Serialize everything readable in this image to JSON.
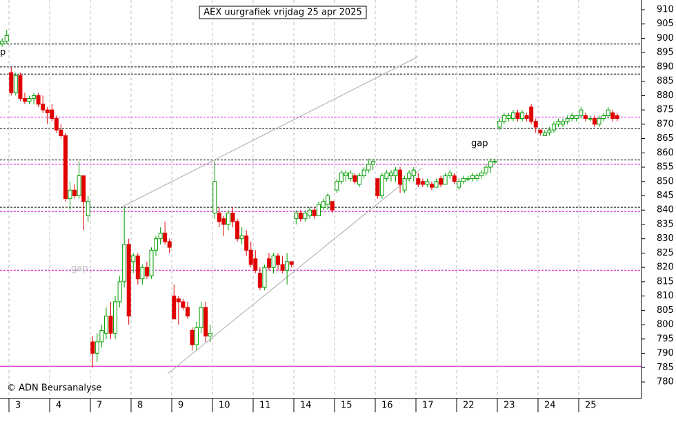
{
  "chart_data": {
    "type": "candlestick",
    "title": "AEX uurgrafiek vrijdag 25 apr 2025",
    "copyright": "© ADN Beursanalyse",
    "annotations": [
      "gap",
      "gap",
      "p"
    ],
    "up_color": "#00a000",
    "down_color": "#e00000",
    "ylim": [
      776,
      912
    ],
    "yticks": [
      780,
      785,
      790,
      795,
      800,
      805,
      810,
      815,
      820,
      825,
      830,
      835,
      840,
      845,
      850,
      855,
      860,
      865,
      870,
      875,
      880,
      885,
      890,
      895,
      900,
      905,
      910
    ],
    "levels": [
      {
        "value": 898,
        "color": "#000000",
        "style": "dotted"
      },
      {
        "value": 890,
        "color": "#000000",
        "style": "dotted"
      },
      {
        "value": 887.5,
        "color": "#000000",
        "style": "dotted"
      },
      {
        "value": 872.5,
        "color": "#cc00cc",
        "style": "dotted"
      },
      {
        "value": 868.5,
        "color": "#000000",
        "style": "dotted"
      },
      {
        "value": 857.5,
        "color": "#000000",
        "style": "dotted"
      },
      {
        "value": 856,
        "color": "#cc00cc",
        "style": "dotted"
      },
      {
        "value": 841,
        "color": "#000000",
        "style": "dotted"
      },
      {
        "value": 839.5,
        "color": "#cc00cc",
        "style": "dotted"
      },
      {
        "value": 819,
        "color": "#cc00cc",
        "style": "dotted"
      },
      {
        "value": 785.5,
        "color": "#cc00cc",
        "style": "solid"
      }
    ],
    "days": [
      {
        "label": null,
        "candles": [
          null,
          null,
          null,
          null,
          null,
          null,
          null,
          [
            898,
            900,
            897,
            899
          ],
          [
            899,
            903,
            898,
            901
          ]
        ]
      },
      {
        "label": "3",
        "candles": [
          [
            888,
            890,
            880,
            881
          ],
          [
            881,
            888,
            880,
            887
          ],
          [
            887,
            888,
            878,
            879
          ],
          [
            879,
            881,
            877,
            878
          ],
          [
            878,
            880,
            877,
            879
          ],
          [
            879,
            881,
            877,
            880
          ],
          [
            880,
            881,
            876,
            877
          ],
          [
            877,
            880,
            874,
            875
          ],
          [
            875,
            876,
            870,
            874
          ]
        ]
      },
      {
        "label": "4",
        "candles": [
          [
            875,
            877,
            871,
            872
          ],
          [
            872,
            873,
            867,
            868
          ],
          [
            868,
            870,
            865,
            866
          ],
          [
            866,
            867,
            843,
            844
          ],
          [
            844,
            850,
            840,
            847
          ],
          [
            847,
            849,
            844,
            845
          ],
          [
            845,
            857,
            844,
            852
          ],
          [
            852,
            852,
            833,
            843
          ],
          [
            838,
            845,
            836,
            843
          ]
        ]
      },
      {
        "label": "7",
        "candles": [
          [
            794,
            796,
            785,
            790
          ],
          [
            790,
            797,
            787,
            794
          ],
          [
            794,
            800,
            792,
            798
          ],
          [
            797,
            806,
            795,
            803
          ],
          [
            803,
            808,
            795,
            797
          ],
          [
            797,
            810,
            795,
            808
          ],
          [
            808,
            817,
            806,
            815
          ],
          [
            815,
            841,
            813,
            828
          ],
          [
            828,
            830,
            800,
            803
          ]
        ]
      },
      {
        "label": "8",
        "candles": [
          [
            822,
            825,
            818,
            824
          ],
          [
            824,
            825,
            814,
            816
          ],
          [
            816,
            821,
            814,
            820
          ],
          [
            820,
            822,
            816,
            817
          ],
          [
            817,
            827,
            816,
            826
          ],
          [
            826,
            831,
            824,
            830
          ],
          [
            830,
            834,
            828,
            832
          ],
          [
            832,
            836,
            828,
            829
          ],
          [
            829,
            830,
            825,
            827
          ]
        ]
      },
      {
        "label": "9",
        "candles": [
          [
            810,
            814,
            802,
            802
          ],
          [
            809,
            810,
            800,
            808
          ],
          [
            808,
            809,
            805,
            806
          ],
          [
            806,
            808,
            802,
            803
          ],
          [
            798,
            799,
            791,
            793
          ],
          [
            793,
            801,
            791,
            799
          ],
          [
            799,
            808,
            797,
            806
          ],
          [
            806,
            808,
            794,
            796
          ],
          [
            796,
            800,
            794,
            797
          ]
        ]
      },
      {
        "label": "10",
        "candles": [
          [
            839,
            857,
            837,
            850
          ],
          [
            839,
            841,
            834,
            836
          ],
          [
            837,
            838,
            831,
            835
          ],
          [
            835,
            840,
            833,
            839
          ],
          [
            839,
            841,
            834,
            836
          ],
          [
            836,
            837,
            829,
            830
          ],
          [
            830,
            834,
            828,
            831
          ],
          [
            831,
            833,
            824,
            826
          ],
          [
            826,
            829,
            820,
            821
          ]
        ]
      },
      {
        "label": "11",
        "candles": [
          [
            823,
            826,
            818,
            819
          ],
          [
            818,
            820,
            812,
            813
          ],
          [
            813,
            821,
            812,
            820
          ],
          [
            823,
            825,
            819,
            820
          ],
          [
            820,
            825,
            818,
            824
          ],
          [
            824,
            825,
            819,
            821
          ],
          [
            821,
            824,
            818,
            819
          ],
          [
            819,
            825,
            814,
            822
          ],
          [
            822,
            822,
            820,
            821
          ]
        ]
      },
      {
        "label": "14",
        "candles": [
          [
            837,
            840,
            835,
            839
          ],
          [
            839,
            840,
            836,
            837
          ],
          [
            837,
            840,
            836,
            839
          ],
          [
            838,
            841,
            837,
            840
          ],
          [
            840,
            841,
            837,
            838
          ],
          [
            838,
            843,
            838,
            842
          ],
          [
            841,
            844,
            840,
            843
          ],
          [
            842,
            846,
            840,
            845
          ],
          [
            843,
            843,
            839,
            840
          ]
        ]
      },
      {
        "label": "15",
        "candles": [
          [
            847,
            851,
            846,
            850
          ],
          [
            850,
            854,
            849,
            853
          ],
          [
            852,
            854,
            850,
            853
          ],
          [
            851,
            854,
            850,
            853
          ],
          [
            852,
            853,
            849,
            850
          ],
          [
            849,
            853,
            848,
            852
          ],
          [
            852,
            855,
            851,
            854
          ],
          [
            854,
            858,
            853,
            856
          ],
          [
            856,
            858,
            854,
            857
          ]
        ]
      },
      {
        "label": "16",
        "candles": [
          [
            851,
            851,
            844,
            845
          ],
          [
            845,
            853,
            844,
            852
          ],
          [
            851,
            854,
            850,
            853
          ],
          [
            852,
            854,
            850,
            853
          ],
          [
            852,
            855,
            850,
            854
          ],
          [
            854,
            855,
            846,
            849
          ],
          [
            847,
            852,
            846,
            851
          ],
          [
            851,
            854,
            850,
            853
          ],
          [
            852,
            855,
            850,
            854
          ]
        ]
      },
      {
        "label": "17",
        "candles": [
          [
            851,
            853,
            848,
            849
          ],
          [
            850,
            851,
            848,
            849
          ],
          [
            849,
            851,
            848,
            850
          ],
          [
            849,
            850,
            847,
            848
          ],
          [
            848,
            851,
            848,
            850
          ],
          [
            851,
            852,
            848,
            849
          ],
          [
            849,
            853,
            849,
            852
          ],
          [
            852,
            854,
            851,
            853
          ],
          [
            852,
            853,
            849,
            850
          ]
        ]
      },
      {
        "label": "22",
        "candles": [
          [
            848,
            851,
            847,
            850
          ],
          [
            850,
            852,
            849,
            851
          ],
          [
            851,
            852,
            850,
            851
          ],
          [
            851,
            853,
            850,
            852
          ],
          [
            851,
            853,
            850,
            852
          ],
          [
            852,
            854,
            851,
            853
          ],
          [
            853,
            856,
            852,
            855
          ],
          [
            855,
            858,
            853,
            857
          ],
          [
            857,
            858,
            856,
            857
          ]
        ]
      },
      {
        "label": "23",
        "candles": [
          [
            869,
            872,
            868,
            871
          ],
          [
            871,
            874,
            870,
            873
          ],
          [
            872,
            874,
            871,
            873
          ],
          [
            872,
            875,
            871,
            874
          ],
          [
            874,
            875,
            871,
            872
          ],
          [
            872,
            875,
            871,
            874
          ],
          [
            873,
            874,
            871,
            872
          ],
          [
            876,
            877,
            870,
            871
          ],
          [
            871,
            872,
            867,
            869
          ]
        ]
      },
      {
        "label": "24",
        "candles": [
          [
            868,
            868,
            866,
            867
          ],
          [
            866,
            868,
            866,
            867
          ],
          [
            867,
            869,
            866,
            868
          ],
          [
            868,
            871,
            867,
            870
          ],
          [
            870,
            872,
            869,
            871
          ],
          [
            870,
            872,
            869,
            871
          ],
          [
            871,
            873,
            870,
            872
          ],
          [
            872,
            874,
            871,
            873
          ],
          [
            872,
            873,
            871,
            873
          ]
        ]
      },
      {
        "label": "25",
        "candles": [
          [
            873,
            876,
            872,
            875
          ],
          [
            873,
            874,
            871,
            872
          ],
          [
            872,
            873,
            871,
            872
          ],
          [
            872,
            873,
            869,
            870
          ],
          [
            870,
            873,
            869,
            872
          ],
          [
            872,
            874,
            871,
            873
          ],
          [
            873,
            876,
            872,
            875
          ],
          [
            874,
            875,
            871,
            872
          ],
          [
            873,
            874,
            871,
            872
          ]
        ]
      }
    ]
  }
}
